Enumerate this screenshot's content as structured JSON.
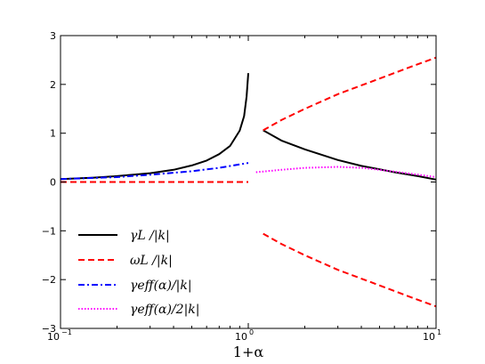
{
  "chart_data": {
    "type": "line",
    "xscale": "log",
    "xlim": [
      0.1,
      10
    ],
    "ylim": [
      -3,
      3
    ],
    "xlabel": "1+α",
    "ylabel": "",
    "grid": false,
    "legend_position": "lower-left",
    "x_ticks": [
      {
        "value": 0.1,
        "base": "10",
        "exp": "−1"
      },
      {
        "value": 1,
        "base": "10",
        "exp": "0"
      },
      {
        "value": 10,
        "base": "10",
        "exp": "1"
      }
    ],
    "y_ticks": [
      "3",
      "2",
      "1",
      "0",
      "−1",
      "−2",
      "−3"
    ],
    "series": [
      {
        "name": "γL /|k|",
        "color": "#000000",
        "dash": "solid",
        "segments": [
          {
            "x": [
              0.1,
              0.15,
              0.2,
              0.3,
              0.4,
              0.5,
              0.6,
              0.7,
              0.8,
              0.9,
              0.95,
              0.98,
              1.0
            ],
            "y": [
              0.06,
              0.09,
              0.12,
              0.18,
              0.25,
              0.34,
              0.44,
              0.57,
              0.74,
              1.05,
              1.35,
              1.75,
              2.23
            ]
          },
          {
            "x": [
              1.2,
              1.5,
              2.0,
              3.0,
              4.0,
              5.0,
              6.0,
              8.0,
              10.0
            ],
            "y": [
              1.06,
              0.85,
              0.67,
              0.45,
              0.33,
              0.26,
              0.2,
              0.12,
              0.05
            ]
          }
        ]
      },
      {
        "name": "ωL /|k|",
        "color": "#ff0000",
        "dash": "dashed",
        "segments": [
          {
            "x": [
              0.1,
              1.0
            ],
            "y": [
              0.0,
              0.0
            ]
          },
          {
            "x": [
              1.2,
              1.5,
              2.0,
              3.0,
              5.0,
              7.0,
              10.0
            ],
            "y": [
              1.06,
              1.27,
              1.5,
              1.8,
              2.12,
              2.33,
              2.55
            ]
          },
          {
            "x": [
              1.2,
              1.5,
              2.0,
              3.0,
              5.0,
              7.0,
              10.0
            ],
            "y": [
              -1.06,
              -1.27,
              -1.5,
              -1.8,
              -2.12,
              -2.33,
              -2.55
            ]
          }
        ]
      },
      {
        "name": "γeff(α)/|k|",
        "color": "#0000ff",
        "dash": "dashdot",
        "segments": [
          {
            "x": [
              0.1,
              0.2,
              0.3,
              0.5,
              0.7,
              1.0
            ],
            "y": [
              0.06,
              0.1,
              0.15,
              0.22,
              0.29,
              0.39
            ]
          }
        ]
      },
      {
        "name": "γeff(α)/2|k|",
        "color": "#ff00ff",
        "dash": "dotted",
        "segments": [
          {
            "x": [
              1.1,
              1.5,
              2.0,
              3.0,
              4.0,
              5.0,
              7.0,
              10.0
            ],
            "y": [
              0.2,
              0.25,
              0.29,
              0.31,
              0.29,
              0.25,
              0.18,
              0.1
            ]
          }
        ]
      }
    ]
  }
}
